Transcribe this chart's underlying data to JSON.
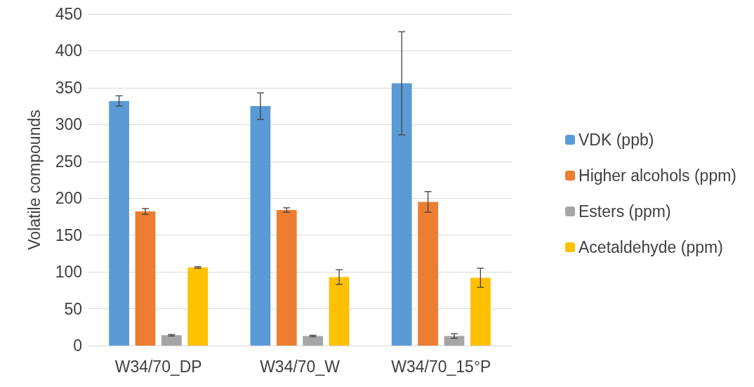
{
  "chart_data": {
    "type": "bar",
    "ylabel": "Volatile compounds",
    "categories": [
      "W34/70_DP",
      "W34/70_W",
      "W34/70_15°P"
    ],
    "series": [
      {
        "name": "VDK (ppb)",
        "color": "#5b9bd5",
        "values": [
          332,
          325,
          356
        ],
        "errors": [
          7,
          18,
          70
        ]
      },
      {
        "name": "Higher alcohols (ppm)",
        "color": "#ed7d31",
        "values": [
          182,
          184,
          195
        ],
        "errors": [
          4,
          3,
          14
        ]
      },
      {
        "name": "Esters (ppm)",
        "color": "#a5a5a5",
        "values": [
          14,
          13,
          13
        ],
        "errors": [
          1,
          1,
          3
        ]
      },
      {
        "name": "Acetaldehyde (ppm)",
        "color": "#ffc000",
        "values": [
          106,
          93,
          92
        ],
        "errors": [
          1,
          10,
          13
        ]
      }
    ],
    "ylim": [
      0,
      450
    ],
    "yticks": [
      0,
      50,
      100,
      150,
      200,
      250,
      300,
      350,
      400,
      450
    ],
    "grid": "y",
    "legend": "right"
  }
}
